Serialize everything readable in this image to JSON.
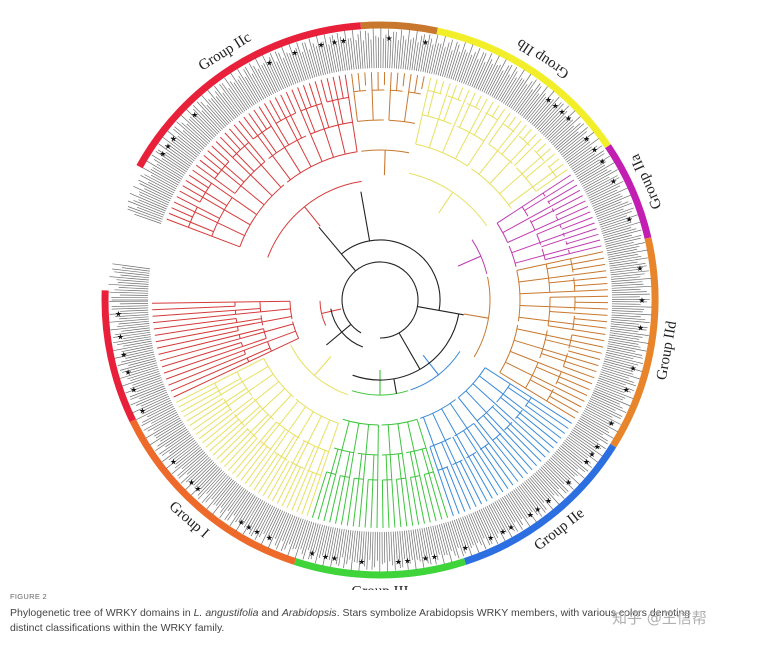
{
  "figure": {
    "groups": [
      {
        "name": "Group IIc",
        "color": "#e8203a"
      },
      {
        "name": "Group IIb",
        "color": "#f2ef2a"
      },
      {
        "name": "Group IIa",
        "color": "#c21fb2"
      },
      {
        "name": "Group IId",
        "color": "#e8842a"
      },
      {
        "name": "Group IIe",
        "color": "#2b6fe0"
      },
      {
        "name": "Group III",
        "color": "#3ed43a"
      },
      {
        "name": "Group I",
        "color": "#ee6a2a"
      }
    ],
    "branch_colors": {
      "red": "#d63a3a",
      "orange": "#c8782e",
      "yellow": "#e8e060",
      "magenta": "#c03ab0",
      "blue": "#3a8ad8",
      "green": "#3cc43c",
      "black": "#222222"
    }
  },
  "caption": {
    "figure_label": "FIGURE 2",
    "text_1": "Phylogenetic tree of WRKY domains in ",
    "species_1": "L. angustifolia",
    "text_2": " and ",
    "species_2": "Arabidopsis",
    "text_3": ". Stars symbolize Arabidopsis WRKY members, with various colors denoting distinct classifications within the WRKY family."
  },
  "watermark": "知乎 @王信帮"
}
